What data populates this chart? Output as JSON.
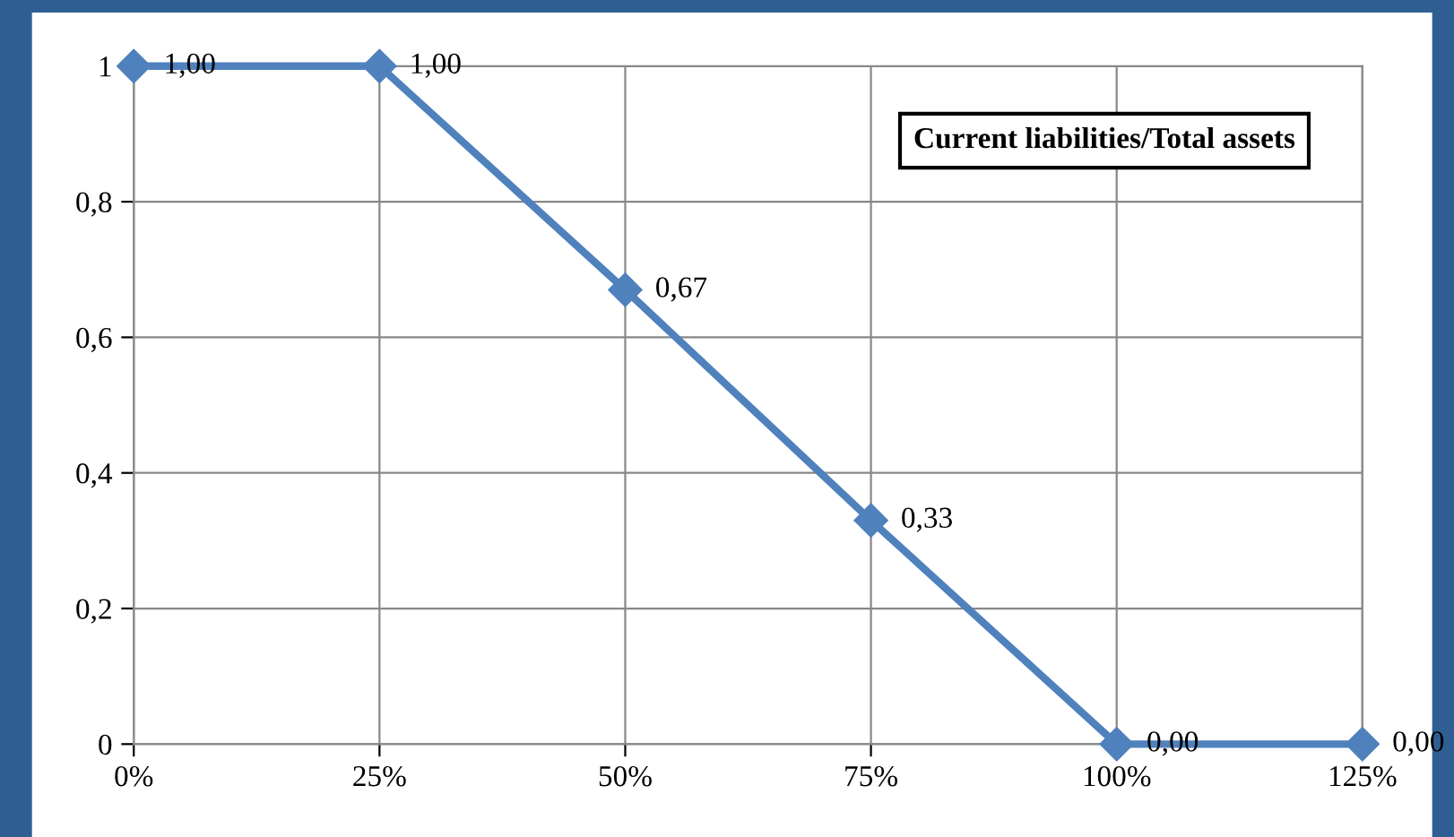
{
  "chart_data": {
    "type": "line",
    "title": "Current liabilities/Total assets",
    "x": [
      0,
      0.25,
      0.5,
      0.75,
      1.0,
      1.25
    ],
    "series": [
      {
        "color": "#4f81bd",
        "values": [
          1.0,
          1.0,
          0.67,
          0.33,
          0.0,
          0.0
        ],
        "value_labels": [
          "1,00",
          "1,00",
          "0,67",
          "0,33",
          "0,00",
          "0,00"
        ]
      }
    ],
    "xlim": [
      0,
      1.25
    ],
    "ylim": [
      0,
      1
    ],
    "xticks": [
      {
        "value": 0,
        "label": "0%"
      },
      {
        "value": 0.25,
        "label": "25%"
      },
      {
        "value": 0.5,
        "label": "50%"
      },
      {
        "value": 0.75,
        "label": "75%"
      },
      {
        "value": 1.0,
        "label": "100%"
      },
      {
        "value": 1.25,
        "label": "125%"
      }
    ],
    "yticks": [
      0,
      {
        "value": 0.2,
        "label": "0,2"
      },
      {
        "value": 0.4,
        "label": "0,4"
      },
      {
        "value": 0.6,
        "label": "0,6"
      },
      {
        "value": 0.8,
        "label": "0,8"
      },
      1
    ],
    "grid": true,
    "marker": "diamond",
    "line_style": "solid",
    "legend": false
  }
}
